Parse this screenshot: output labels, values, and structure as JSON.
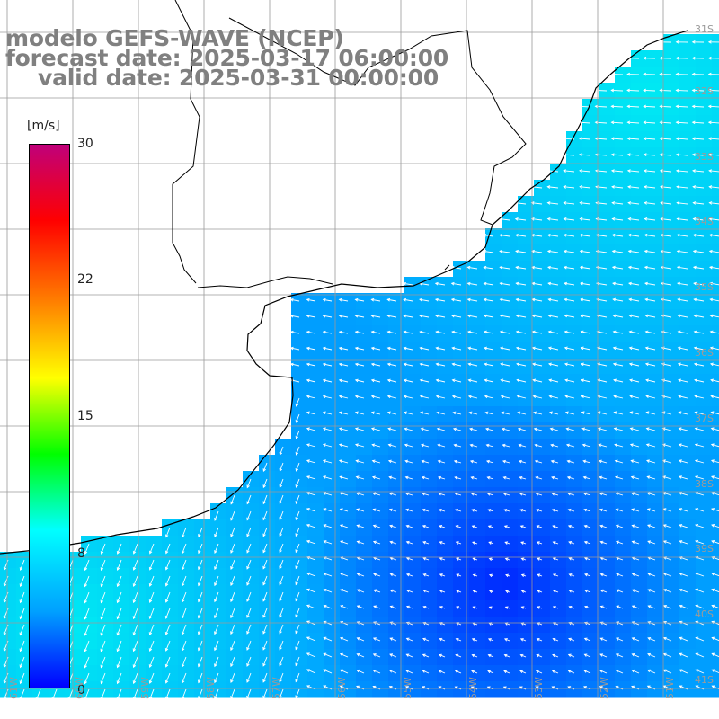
{
  "title": {
    "line1": "modelo GEFS-WAVE (NCEP)",
    "line2": "forecast date: 2025-03-17 06:00:00",
    "line3": "valid date: 2025-03-31 00:00:00"
  },
  "colorbar": {
    "unit": "[m/s]",
    "ticks": [
      "30",
      "22",
      "15",
      "8",
      "0"
    ],
    "tick_values": [
      30,
      22,
      15,
      8,
      0
    ],
    "min": 0,
    "max": 30,
    "colors": [
      "#0000ff",
      "#00a0ff",
      "#00ffff",
      "#00ff00",
      "#ffff00",
      "#ff8000",
      "#ff0000",
      "#c0007a"
    ]
  },
  "latitude_labels": [
    "31S",
    "32S",
    "33S",
    "34S",
    "35S",
    "36S",
    "37S",
    "38S",
    "39S",
    "40S",
    "41S"
  ],
  "longitude_labels": [
    "61W",
    "60W",
    "59W",
    "58W",
    "57W",
    "56W",
    "55W",
    "54W",
    "53W",
    "52W",
    "51W"
  ],
  "colors": {
    "land": "#ffffff",
    "grid": "#9a9a9a",
    "coast": "#000000",
    "arrow": "#ffffff",
    "title": "#808080"
  }
}
